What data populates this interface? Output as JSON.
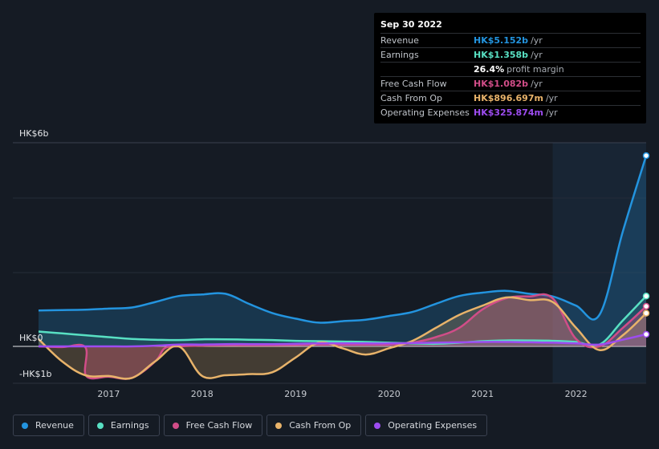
{
  "chart_data": {
    "type": "line",
    "y_axis_labels": [
      "HK$6b",
      "HK$0",
      "-HK$1b"
    ],
    "y_ticks": [
      6,
      0,
      -1
    ],
    "ylim": [
      -1.05,
      5.5
    ],
    "xlim": [
      2016.25,
      2022.75
    ],
    "x_tick_labels": [
      "2017",
      "2018",
      "2019",
      "2020",
      "2021",
      "2022"
    ],
    "x_tick_values": [
      2017,
      2018,
      2019,
      2020,
      2021,
      2022
    ],
    "shaded_from": 2021.75,
    "series": [
      {
        "name": "Revenue",
        "color": "#2394df",
        "x": [
          2016.25,
          2016.5,
          2016.75,
          2017.0,
          2017.25,
          2017.5,
          2017.75,
          2018.0,
          2018.25,
          2018.5,
          2018.75,
          2019.0,
          2019.25,
          2019.5,
          2019.75,
          2020.0,
          2020.25,
          2020.5,
          2020.75,
          2021.0,
          2021.25,
          2021.5,
          2021.75,
          2022.0,
          2022.25,
          2022.5,
          2022.75
        ],
        "values": [
          0.97,
          0.98,
          0.99,
          1.02,
          1.05,
          1.2,
          1.36,
          1.4,
          1.42,
          1.15,
          0.9,
          0.75,
          0.64,
          0.68,
          0.72,
          0.82,
          0.93,
          1.15,
          1.36,
          1.45,
          1.5,
          1.42,
          1.35,
          1.1,
          0.85,
          3.1,
          5.152
        ]
      },
      {
        "name": "Earnings",
        "color": "#58e0c3",
        "x": [
          2016.25,
          2016.5,
          2016.75,
          2017.0,
          2017.25,
          2017.5,
          2017.75,
          2018.0,
          2018.25,
          2018.5,
          2018.75,
          2019.0,
          2019.25,
          2019.5,
          2019.75,
          2020.0,
          2020.25,
          2020.5,
          2020.75,
          2021.0,
          2021.25,
          2021.5,
          2021.75,
          2022.0,
          2022.25,
          2022.5,
          2022.75
        ],
        "values": [
          0.4,
          0.35,
          0.3,
          0.25,
          0.2,
          0.18,
          0.17,
          0.19,
          0.19,
          0.18,
          0.17,
          0.15,
          0.14,
          0.13,
          0.12,
          0.1,
          0.08,
          0.07,
          0.1,
          0.14,
          0.16,
          0.16,
          0.15,
          0.12,
          0.05,
          0.7,
          1.358
        ]
      },
      {
        "name": "Free Cash Flow",
        "color": "#d14d88",
        "x": [
          2016.25,
          2016.5,
          2016.75,
          2016.76,
          2017.0,
          2017.25,
          2017.5,
          2017.6,
          2017.75,
          2018.0,
          2018.25,
          2018.5,
          2018.75,
          2019.0,
          2019.25,
          2019.5,
          2019.75,
          2020.0,
          2020.25,
          2020.5,
          2020.75,
          2021.0,
          2021.25,
          2021.5,
          2021.75,
          2022.0,
          2022.25,
          2022.5,
          2022.75
        ],
        "values": [
          0.0,
          -0.02,
          -0.02,
          -0.8,
          -0.82,
          -0.85,
          -0.4,
          -0.05,
          0.0,
          0.02,
          0.03,
          0.03,
          0.03,
          0.04,
          0.05,
          0.05,
          0.05,
          0.05,
          0.1,
          0.25,
          0.5,
          1.0,
          1.3,
          1.35,
          1.3,
          0.2,
          0.0,
          0.5,
          1.082
        ]
      },
      {
        "name": "Cash From Op",
        "color": "#e8b36a",
        "x": [
          2016.25,
          2016.5,
          2016.75,
          2017.0,
          2017.25,
          2017.5,
          2017.75,
          2018.0,
          2018.25,
          2018.5,
          2018.75,
          2019.0,
          2019.25,
          2019.5,
          2019.75,
          2020.0,
          2020.25,
          2020.5,
          2020.75,
          2021.0,
          2021.25,
          2021.5,
          2021.75,
          2022.0,
          2022.25,
          2022.5,
          2022.75
        ],
        "values": [
          0.2,
          -0.4,
          -0.78,
          -0.8,
          -0.85,
          -0.4,
          0.0,
          -0.8,
          -0.78,
          -0.75,
          -0.7,
          -0.3,
          0.1,
          -0.05,
          -0.22,
          -0.05,
          0.15,
          0.5,
          0.85,
          1.1,
          1.32,
          1.25,
          1.2,
          0.5,
          -0.1,
          0.3,
          0.897
        ]
      },
      {
        "name": "Operating Expenses",
        "color": "#9d4cf0",
        "x": [
          2016.25,
          2016.5,
          2016.75,
          2017.0,
          2017.25,
          2017.5,
          2017.75,
          2018.0,
          2018.25,
          2018.5,
          2018.75,
          2019.0,
          2019.25,
          2019.5,
          2019.75,
          2020.0,
          2020.25,
          2020.5,
          2020.75,
          2021.0,
          2021.25,
          2021.5,
          2021.75,
          2022.0,
          2022.25,
          2022.5,
          2022.75
        ],
        "values": [
          0.0,
          0.0,
          0.0,
          0.0,
          0.0,
          0.02,
          0.05,
          0.05,
          0.06,
          0.06,
          0.06,
          0.07,
          0.08,
          0.08,
          0.08,
          0.08,
          0.09,
          0.1,
          0.11,
          0.12,
          0.12,
          0.11,
          0.1,
          0.08,
          0.05,
          0.18,
          0.326
        ]
      }
    ]
  },
  "tooltip": {
    "date": "Sep 30 2022",
    "rows": [
      {
        "label": "Revenue",
        "value": "HK$5.152b",
        "unit": "/yr",
        "color": "#2394df"
      },
      {
        "label": "Earnings",
        "value": "HK$1.358b",
        "unit": "/yr",
        "color": "#58e0c3"
      },
      {
        "label": "",
        "value": "26.4%",
        "unit": "profit margin",
        "color": "#ffffff"
      },
      {
        "label": "Free Cash Flow",
        "value": "HK$1.082b",
        "unit": "/yr",
        "color": "#d14d88"
      },
      {
        "label": "Cash From Op",
        "value": "HK$896.697m",
        "unit": "/yr",
        "color": "#e8b36a"
      },
      {
        "label": "Operating Expenses",
        "value": "HK$325.874m",
        "unit": "/yr",
        "color": "#9d4cf0"
      }
    ]
  },
  "legend": [
    {
      "label": "Revenue",
      "color": "#2394df"
    },
    {
      "label": "Earnings",
      "color": "#58e0c3"
    },
    {
      "label": "Free Cash Flow",
      "color": "#d14d88"
    },
    {
      "label": "Cash From Op",
      "color": "#e8b36a"
    },
    {
      "label": "Operating Expenses",
      "color": "#9d4cf0"
    }
  ]
}
